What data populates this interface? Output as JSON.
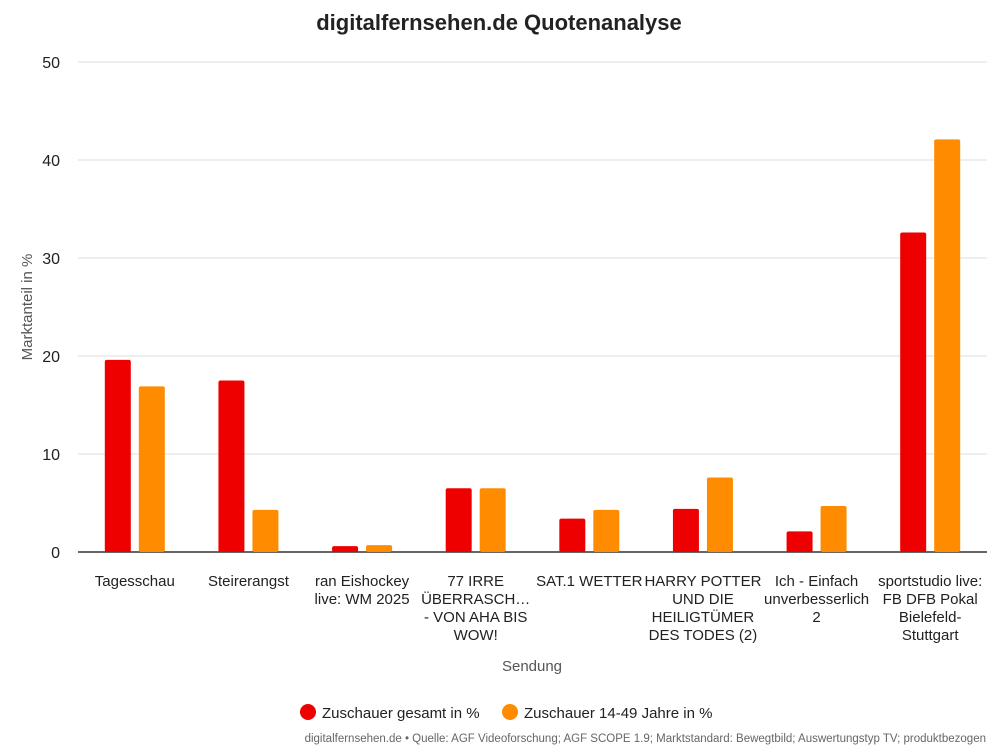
{
  "chart_data": {
    "type": "bar",
    "title": "digitalfernsehen.de Quotenanalyse",
    "xlabel": "Sendung",
    "ylabel": "Marktanteil in %",
    "ylim": [
      0,
      50
    ],
    "yticks": [
      0,
      10,
      20,
      30,
      40,
      50
    ],
    "grid": true,
    "legend_position": "bottom",
    "categories": [
      [
        "Tagesschau"
      ],
      [
        "Steirerangst"
      ],
      [
        "ran Eishockey",
        "live: WM 2025"
      ],
      [
        "77 IRRE",
        "ÜBERRASCH…",
        "- VON AHA BIS",
        "WOW!"
      ],
      [
        "SAT.1 WETTER"
      ],
      [
        "HARRY POTTER",
        "UND DIE",
        "HEILIGTÜMER",
        "DES TODES (2)"
      ],
      [
        "Ich - Einfach",
        "unverbesserlich",
        "2"
      ],
      [
        "sportstudio live:",
        "FB DFB Pokal",
        "Bielefeld-",
        "Stuttgart"
      ]
    ],
    "series": [
      {
        "name": "Zuschauer gesamt in %",
        "color": "#ee0000",
        "values": [
          19.6,
          17.5,
          0.6,
          6.5,
          3.4,
          4.4,
          2.1,
          32.6
        ]
      },
      {
        "name": "Zuschauer 14-49 Jahre in %",
        "color": "#ff8c00",
        "values": [
          16.9,
          4.3,
          0.7,
          6.5,
          4.3,
          7.6,
          4.7,
          42.1
        ]
      }
    ],
    "source_note": "digitalfernsehen.de • Quelle: AGF Videoforschung; AGF SCOPE 1.9; Marktstandard: Bewegtbild; Auswertungstyp TV; produktbezogen"
  }
}
